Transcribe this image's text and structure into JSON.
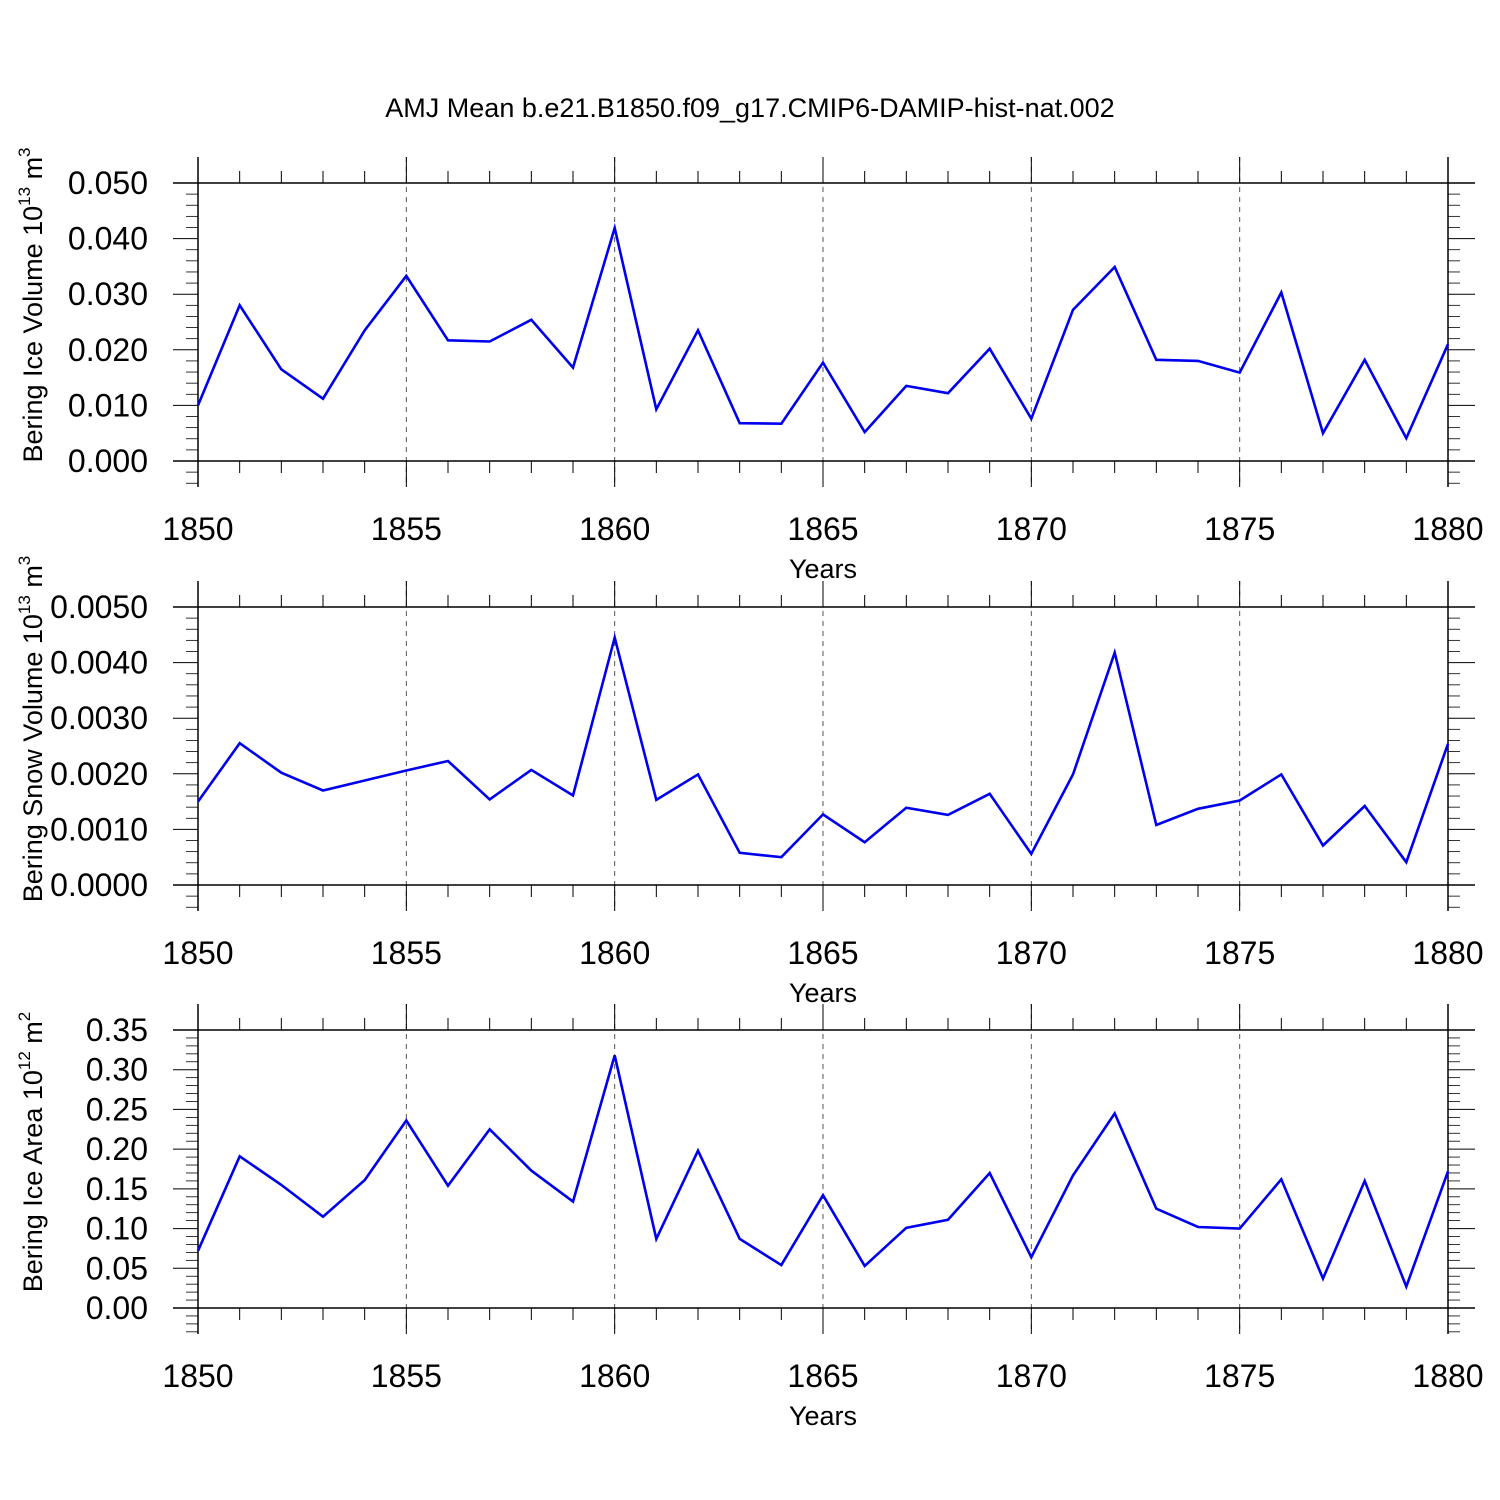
{
  "figure_title": "AMJ Mean b.e21.B1850.f09_g17.CMIP6-DAMIP-hist-nat.002",
  "line_color": "#0000ee",
  "grid_color": "#555555",
  "chart_data": [
    {
      "type": "line",
      "title": "",
      "ylabel": {
        "main": "Bering Ice Volume 10",
        "sup": "13",
        "unit": " m",
        "unit_sup": "3"
      },
      "xlabel": "Years",
      "xlim": [
        1850,
        1880
      ],
      "ylim": [
        0.0,
        0.05
      ],
      "xticks": [
        1850,
        1855,
        1860,
        1865,
        1870,
        1875,
        1880
      ],
      "xtick_labels": [
        "1850",
        "1855",
        "1860",
        "1865",
        "1870",
        "1875",
        "1880"
      ],
      "yticks": [
        0.0,
        0.01,
        0.02,
        0.03,
        0.04,
        0.05
      ],
      "ytick_labels": [
        "0.000",
        "0.010",
        "0.020",
        "0.030",
        "0.040",
        "0.050"
      ],
      "grid": "vertical dashed at major x ticks",
      "series": [
        {
          "name": "Bering Ice Volume",
          "x": [
            1850,
            1851,
            1852,
            1853,
            1854,
            1855,
            1856,
            1857,
            1858,
            1859,
            1860,
            1861,
            1862,
            1863,
            1864,
            1865,
            1866,
            1867,
            1868,
            1869,
            1870,
            1871,
            1872,
            1873,
            1874,
            1875,
            1876,
            1877,
            1878,
            1879,
            1880
          ],
          "values": [
            0.01,
            0.028,
            0.0165,
            0.0112,
            0.0235,
            0.0333,
            0.0217,
            0.0215,
            0.0254,
            0.0168,
            0.0419,
            0.0093,
            0.0235,
            0.0068,
            0.0067,
            0.0177,
            0.0052,
            0.0135,
            0.0122,
            0.0202,
            0.0076,
            0.0272,
            0.0349,
            0.0182,
            0.018,
            0.0159,
            0.0303,
            0.005,
            0.0182,
            0.0041,
            0.021
          ]
        }
      ]
    },
    {
      "type": "line",
      "title": "",
      "ylabel": {
        "main": "Bering Snow Volume 10",
        "sup": "13",
        "unit": " m",
        "unit_sup": "3"
      },
      "xlabel": "Years",
      "xlim": [
        1850,
        1880
      ],
      "ylim": [
        0.0,
        0.005
      ],
      "xticks": [
        1850,
        1855,
        1860,
        1865,
        1870,
        1875,
        1880
      ],
      "xtick_labels": [
        "1850",
        "1855",
        "1860",
        "1865",
        "1870",
        "1875",
        "1880"
      ],
      "yticks": [
        0.0,
        0.001,
        0.002,
        0.003,
        0.004,
        0.005
      ],
      "ytick_labels": [
        "0.0000",
        "0.0010",
        "0.0020",
        "0.0030",
        "0.0040",
        "0.0050"
      ],
      "grid": "vertical dashed at major x ticks",
      "series": [
        {
          "name": "Bering Snow Volume",
          "x": [
            1850,
            1851,
            1852,
            1853,
            1854,
            1855,
            1856,
            1857,
            1858,
            1859,
            1860,
            1861,
            1862,
            1863,
            1864,
            1865,
            1866,
            1867,
            1868,
            1869,
            1870,
            1871,
            1872,
            1873,
            1874,
            1875,
            1876,
            1877,
            1878,
            1879,
            1880
          ],
          "values": [
            0.0015,
            0.00255,
            0.00202,
            0.0017,
            0.00188,
            0.00206,
            0.00223,
            0.00154,
            0.00207,
            0.00161,
            0.00445,
            0.00153,
            0.00199,
            0.00058,
            0.0005,
            0.00127,
            0.00077,
            0.00139,
            0.00126,
            0.00164,
            0.00056,
            0.00199,
            0.00418,
            0.00108,
            0.00137,
            0.00152,
            0.00199,
            0.00071,
            0.00142,
            0.00041,
            0.00254
          ]
        }
      ]
    },
    {
      "type": "line",
      "title": "",
      "ylabel": {
        "main": "Bering Ice Area 10",
        "sup": "12",
        "unit": " m",
        "unit_sup": "2"
      },
      "xlabel": "Years",
      "xlim": [
        1850,
        1880
      ],
      "ylim": [
        0.0,
        0.35
      ],
      "xticks": [
        1850,
        1855,
        1860,
        1865,
        1870,
        1875,
        1880
      ],
      "xtick_labels": [
        "1850",
        "1855",
        "1860",
        "1865",
        "1870",
        "1875",
        "1880"
      ],
      "yticks": [
        0.0,
        0.05,
        0.1,
        0.15,
        0.2,
        0.25,
        0.3,
        0.35
      ],
      "ytick_labels": [
        "0.00",
        "0.05",
        "0.10",
        "0.15",
        "0.20",
        "0.25",
        "0.30",
        "0.35"
      ],
      "grid": "vertical dashed at major x ticks",
      "series": [
        {
          "name": "Bering Ice Area",
          "x": [
            1850,
            1851,
            1852,
            1853,
            1854,
            1855,
            1856,
            1857,
            1858,
            1859,
            1860,
            1861,
            1862,
            1863,
            1864,
            1865,
            1866,
            1867,
            1868,
            1869,
            1870,
            1871,
            1872,
            1873,
            1874,
            1875,
            1876,
            1877,
            1878,
            1879,
            1880
          ],
          "values": [
            0.072,
            0.191,
            0.155,
            0.115,
            0.161,
            0.236,
            0.154,
            0.225,
            0.173,
            0.134,
            0.318,
            0.087,
            0.198,
            0.087,
            0.054,
            0.142,
            0.053,
            0.101,
            0.111,
            0.17,
            0.064,
            0.167,
            0.245,
            0.125,
            0.102,
            0.1,
            0.162,
            0.037,
            0.16,
            0.027,
            0.172
          ]
        }
      ]
    }
  ]
}
